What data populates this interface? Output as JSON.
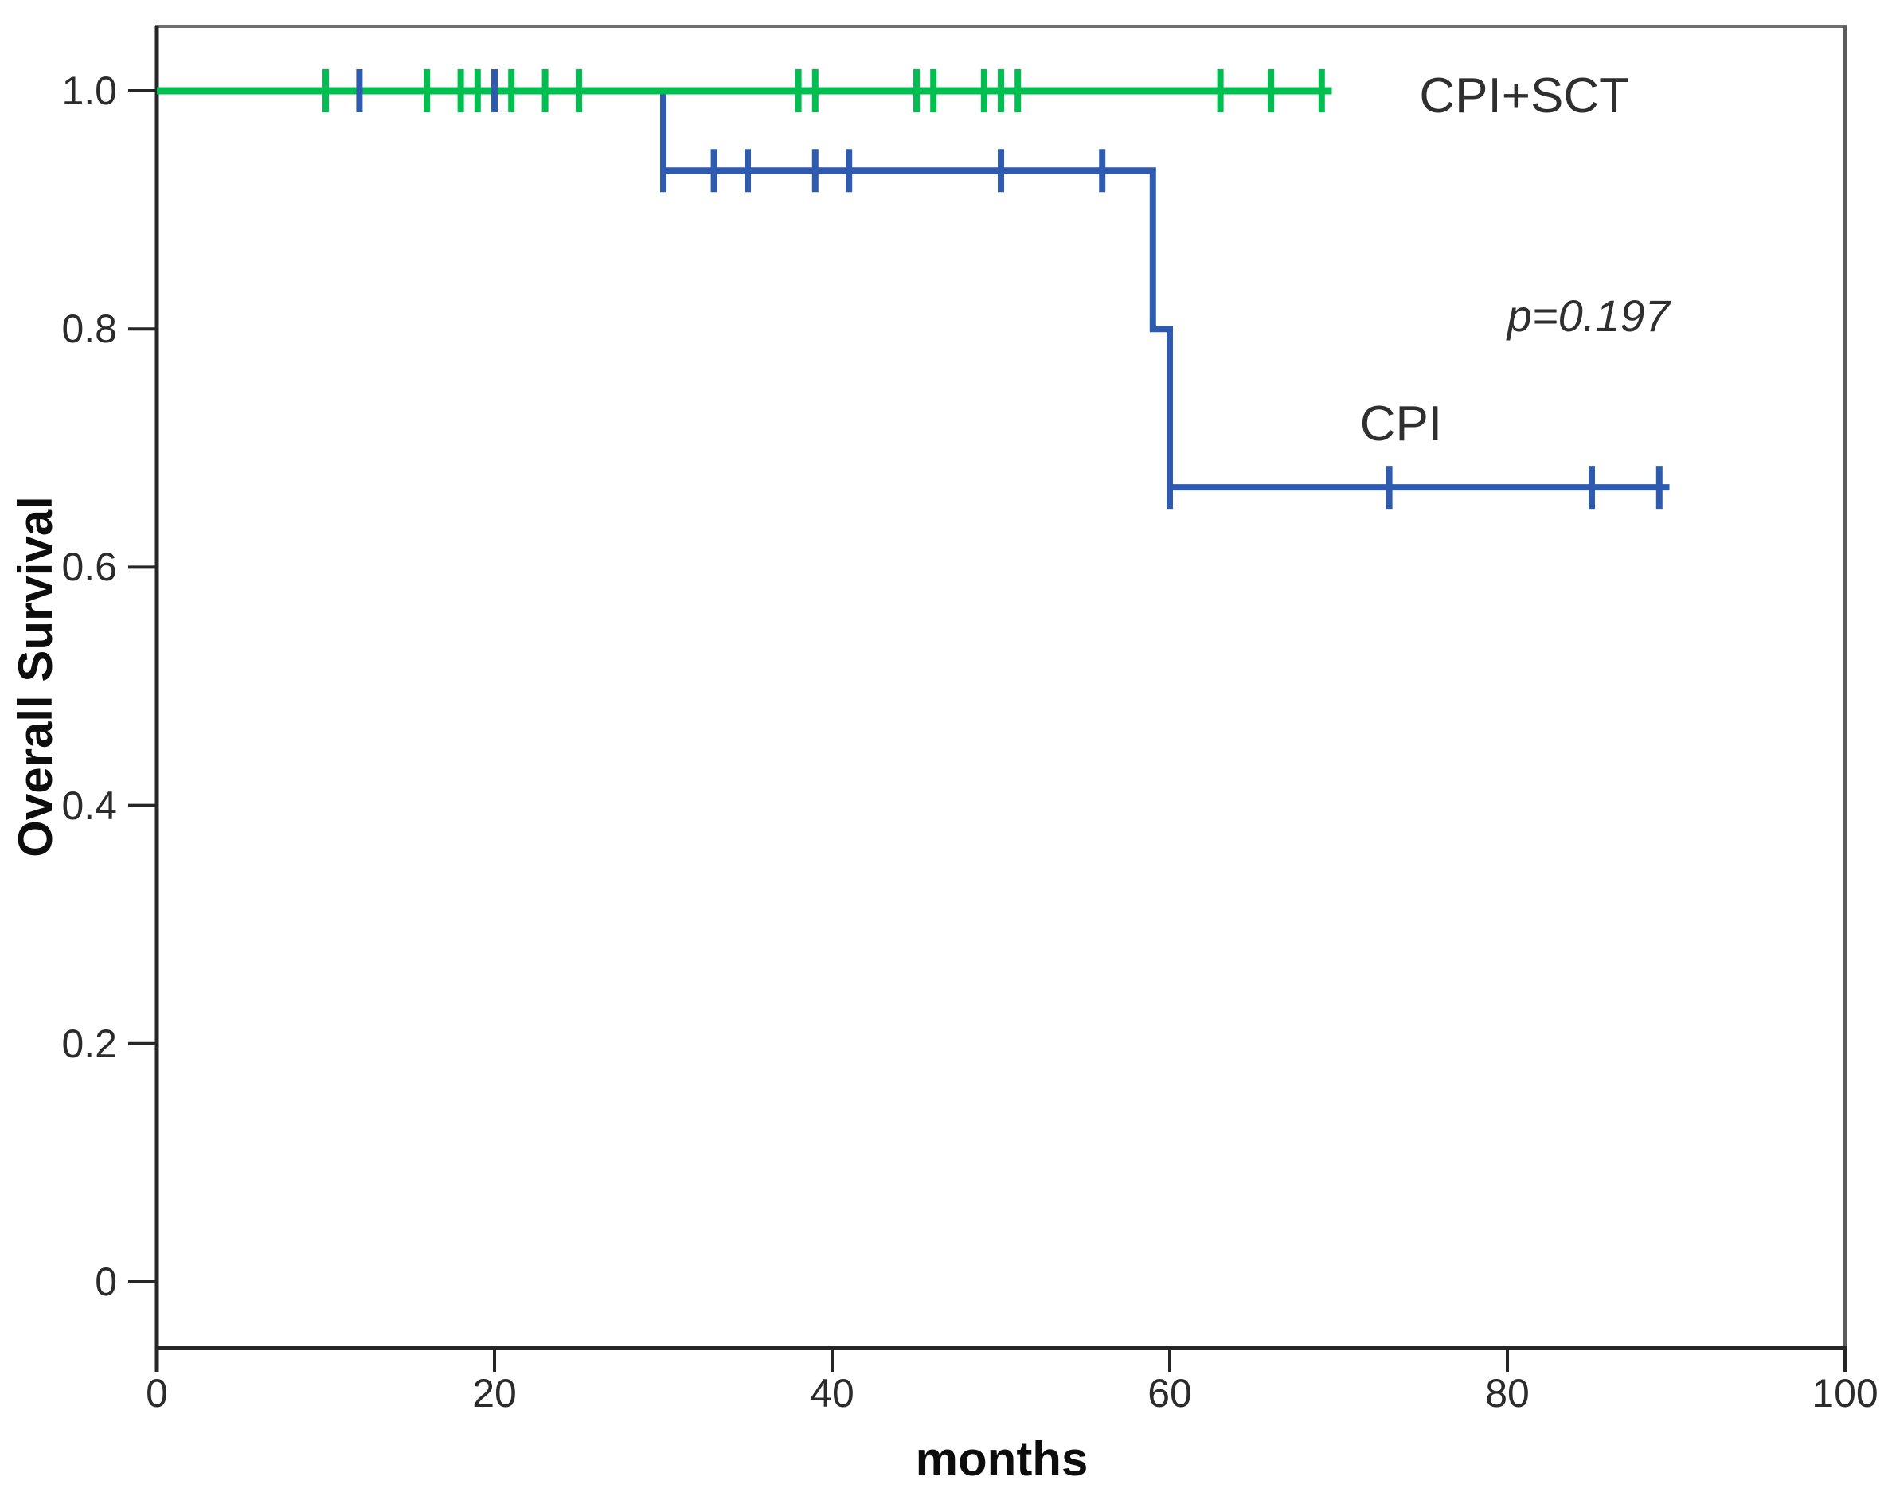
{
  "figure": {
    "background": "#ffffff",
    "axis_color_main": "#262626",
    "axis_color_top": "#707070",
    "axis_color_right": "#5c5c5c"
  },
  "chart_data": {
    "type": "line",
    "subtype": "kaplan_meier_step",
    "title": "",
    "xlabel": "months",
    "ylabel": "Overall Survival",
    "xlim": [
      0,
      100
    ],
    "ylim": [
      0,
      1.05
    ],
    "grid": false,
    "legend_position": "inline-text-labels",
    "x_ticks": [
      0,
      20,
      40,
      60,
      80,
      100
    ],
    "x_tick_labels": [
      "0",
      "20",
      "40",
      "60",
      "80",
      "100"
    ],
    "y_ticks": [
      0,
      0.2,
      0.4,
      0.6,
      0.8,
      1.0
    ],
    "y_tick_labels": [
      "0",
      "0.2",
      "0.4",
      "0.6",
      "0.8",
      "1.0"
    ],
    "series": [
      {
        "name": "CPI",
        "color": "#2e5bb0",
        "line_width": 8,
        "steps": [
          [
            0,
            1.0
          ],
          [
            30,
            1.0
          ],
          [
            30,
            0.933
          ],
          [
            59,
            0.933
          ],
          [
            59,
            0.8
          ],
          [
            60,
            0.8
          ],
          [
            60,
            0.667
          ],
          [
            89.6,
            0.667
          ]
        ],
        "censor_marks": [
          [
            12,
            1.0
          ],
          [
            20,
            1.0
          ],
          [
            30,
            0.933
          ],
          [
            33,
            0.933
          ],
          [
            35,
            0.933
          ],
          [
            39,
            0.933
          ],
          [
            41,
            0.933
          ],
          [
            50,
            0.933
          ],
          [
            56,
            0.933
          ],
          [
            60,
            0.667
          ],
          [
            73,
            0.667
          ],
          [
            85,
            0.667
          ],
          [
            89,
            0.667
          ]
        ]
      },
      {
        "name": "CPI+SCT",
        "color": "#00be4f",
        "line_width": 9,
        "steps": [
          [
            0,
            1.0
          ],
          [
            69.6,
            1.0
          ]
        ],
        "censor_marks": [
          [
            10,
            1.0
          ],
          [
            16,
            1.0
          ],
          [
            18,
            1.0
          ],
          [
            19,
            1.0
          ],
          [
            21,
            1.0
          ],
          [
            23,
            1.0
          ],
          [
            25,
            1.0
          ],
          [
            38,
            1.0
          ],
          [
            39,
            1.0
          ],
          [
            45,
            1.0
          ],
          [
            46,
            1.0
          ],
          [
            49,
            1.0
          ],
          [
            50,
            1.0
          ],
          [
            51,
            1.0
          ],
          [
            63,
            1.0
          ],
          [
            66,
            1.0
          ],
          [
            69,
            1.0
          ]
        ]
      }
    ],
    "annotations": [
      {
        "id": "cpi-sct-label",
        "text": "CPI+SCT",
        "x_month": 81,
        "y_survival": 0.995,
        "italic": false
      },
      {
        "id": "p-value-label",
        "text": "p=0.197",
        "x_month": 84.8,
        "y_survival": 0.811,
        "italic": true
      },
      {
        "id": "cpi-label",
        "text": "CPI",
        "x_month": 73.7,
        "y_survival": 0.72,
        "italic": false
      }
    ]
  }
}
